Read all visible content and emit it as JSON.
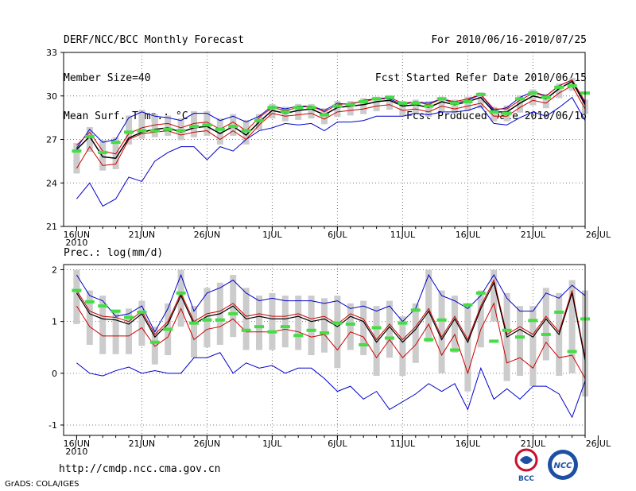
{
  "header": {
    "left": [
      "DERF/NCC/BCC Monthly Forecast",
      "Member Size=40",
      "Mean Surf. Temp.: °C"
    ],
    "right": [
      "For 2010/06/16-2010/07/25",
      "Fcst Started Refer Date 2010/06/15",
      "Fcst Produced Date 2010/06/16"
    ]
  },
  "footer": {
    "url": "http://cmdp.ncc.cma.gov.cn",
    "credit": "GrADS: COLA/IGES",
    "logo_bcc": "BCC",
    "logo_ncc": "NCC"
  },
  "colors": {
    "mean": "#000000",
    "spread": "#cc0000",
    "ens": "#0000cc",
    "box": "#cccccc",
    "marker": "#44dd44"
  },
  "chart_data": [
    {
      "type": "line",
      "title": "Mean Surf. Temp.: °C",
      "ylim": [
        21,
        33
      ],
      "yticks": [
        21,
        24,
        27,
        30,
        33
      ],
      "xticks": [
        "16JUN\n2010",
        "21JUN",
        "26JUN",
        "1JUL",
        "6JUL",
        "11JUL",
        "16JUL",
        "21JUL",
        "26JUL"
      ],
      "days": 40,
      "series": [
        {
          "name": "mean",
          "values": [
            26.3,
            27.2,
            25.8,
            25.7,
            27.1,
            27.5,
            27.7,
            27.8,
            27.5,
            27.8,
            27.9,
            27.4,
            27.9,
            27.3,
            28.2,
            29.0,
            28.8,
            29.0,
            29.1,
            28.7,
            29.2,
            29.3,
            29.4,
            29.6,
            29.7,
            29.3,
            29.4,
            29.2,
            29.6,
            29.4,
            29.6,
            29.9,
            28.9,
            28.9,
            29.5,
            30.0,
            29.8,
            30.5,
            31.0,
            29.4
          ]
        },
        {
          "name": "upper",
          "values": [
            26.6,
            27.5,
            26.2,
            26.0,
            27.4,
            27.8,
            28.0,
            28.1,
            27.8,
            28.1,
            28.2,
            27.7,
            28.2,
            27.6,
            28.5,
            29.2,
            29.0,
            29.2,
            29.3,
            28.9,
            29.4,
            29.5,
            29.6,
            29.8,
            29.9,
            29.5,
            29.6,
            29.4,
            29.8,
            29.6,
            29.8,
            30.1,
            29.1,
            29.1,
            29.7,
            30.2,
            30.0,
            30.7,
            31.1,
            29.6
          ]
        },
        {
          "name": "lower",
          "values": [
            25.0,
            26.5,
            25.2,
            25.3,
            27.0,
            27.4,
            27.5,
            27.6,
            27.3,
            27.5,
            27.6,
            27.0,
            27.6,
            27.0,
            28.0,
            28.8,
            28.6,
            28.7,
            28.8,
            28.4,
            28.9,
            29.0,
            29.1,
            29.3,
            29.4,
            29.0,
            29.1,
            28.9,
            29.3,
            29.1,
            29.3,
            29.5,
            28.6,
            28.6,
            29.2,
            29.7,
            29.5,
            30.2,
            30.7,
            29.1
          ]
        },
        {
          "name": "ens-max",
          "values": [
            26.4,
            27.7,
            26.8,
            27.0,
            28.5,
            28.9,
            28.6,
            28.5,
            28.3,
            28.8,
            28.8,
            28.3,
            28.6,
            28.2,
            28.6,
            29.3,
            29.1,
            29.3,
            29.3,
            29.0,
            29.5,
            29.4,
            29.7,
            29.8,
            29.8,
            29.4,
            29.6,
            29.5,
            29.8,
            29.5,
            29.7,
            30.1,
            29.0,
            29.2,
            29.9,
            30.3,
            30.0,
            30.7,
            31.1,
            29.5
          ]
        },
        {
          "name": "ens-min",
          "values": [
            22.9,
            24.0,
            22.4,
            22.9,
            24.4,
            24.1,
            25.5,
            26.1,
            26.5,
            26.5,
            25.6,
            26.5,
            26.2,
            27.0,
            27.6,
            27.8,
            28.1,
            28.0,
            28.1,
            27.6,
            28.2,
            28.2,
            28.3,
            28.6,
            28.6,
            28.6,
            28.8,
            28.7,
            28.9,
            28.9,
            29.0,
            29.3,
            28.1,
            28.0,
            28.5,
            28.9,
            28.6,
            29.2,
            29.9,
            28.3
          ]
        },
        {
          "name": "green",
          "values": [
            26.2,
            27.2,
            26.1,
            26.8,
            27.5,
            27.6,
            27.6,
            27.7,
            27.6,
            27.9,
            28.0,
            27.7,
            27.9,
            27.6,
            28.3,
            29.2,
            28.9,
            29.2,
            29.2,
            28.7,
            29.3,
            29.4,
            29.6,
            29.8,
            29.9,
            29.5,
            29.5,
            29.3,
            29.8,
            29.5,
            29.6,
            30.1,
            28.9,
            28.8,
            29.8,
            30.2,
            29.9,
            30.6,
            30.7,
            30.2
          ]
        }
      ]
    },
    {
      "type": "line",
      "title": "Prec.: log(mm/d)",
      "ylim": [
        -1.2,
        2.1
      ],
      "yticks": [
        -1,
        0,
        1,
        2
      ],
      "xticks": [
        "16JUN\n2010",
        "21JUN",
        "26JUN",
        "1JUL",
        "6JUL",
        "11JUL",
        "16JUL",
        "21JUL",
        "26JUL"
      ],
      "days": 40,
      "series": [
        {
          "name": "mean",
          "values": [
            1.55,
            1.15,
            1.05,
            1.03,
            0.95,
            1.15,
            0.7,
            0.95,
            1.5,
            0.95,
            1.1,
            1.15,
            1.3,
            1.05,
            1.1,
            1.05,
            1.05,
            1.1,
            1.0,
            1.05,
            0.9,
            1.1,
            1.0,
            0.6,
            0.9,
            0.6,
            0.85,
            1.2,
            0.65,
            1.05,
            0.6,
            1.25,
            1.75,
            0.7,
            0.85,
            0.7,
            1.05,
            0.75,
            1.55,
            0.25
          ]
        },
        {
          "name": "upper",
          "values": [
            1.6,
            1.2,
            1.1,
            1.08,
            1.0,
            1.2,
            0.75,
            1.0,
            1.55,
            1.0,
            1.15,
            1.2,
            1.35,
            1.1,
            1.15,
            1.1,
            1.1,
            1.15,
            1.05,
            1.1,
            0.95,
            1.15,
            1.05,
            0.65,
            0.95,
            0.65,
            0.9,
            1.25,
            0.7,
            1.1,
            0.65,
            1.3,
            1.8,
            0.75,
            0.9,
            0.75,
            1.1,
            0.8,
            1.6,
            0.3
          ]
        },
        {
          "name": "red",
          "values": [
            1.3,
            0.9,
            0.72,
            0.72,
            0.72,
            0.88,
            0.52,
            0.7,
            1.25,
            0.65,
            0.85,
            0.9,
            1.05,
            0.8,
            0.8,
            0.8,
            0.85,
            0.8,
            0.7,
            0.75,
            0.45,
            0.8,
            0.7,
            0.3,
            0.65,
            0.3,
            0.55,
            0.95,
            0.35,
            0.75,
            0.0,
            0.85,
            1.35,
            0.2,
            0.3,
            0.1,
            0.6,
            0.3,
            0.35,
            -0.1
          ]
        },
        {
          "name": "ens-max",
          "values": [
            1.9,
            1.5,
            1.4,
            1.1,
            1.15,
            1.3,
            0.8,
            1.25,
            1.9,
            1.2,
            1.55,
            1.65,
            1.8,
            1.55,
            1.4,
            1.45,
            1.4,
            1.4,
            1.4,
            1.35,
            1.4,
            1.25,
            1.3,
            1.2,
            1.3,
            1.0,
            1.25,
            1.9,
            1.5,
            1.4,
            1.25,
            1.5,
            1.9,
            1.45,
            1.2,
            1.2,
            1.55,
            1.45,
            1.7,
            1.5
          ]
        },
        {
          "name": "ens-min",
          "values": [
            0.2,
            0.0,
            -0.05,
            0.05,
            0.12,
            0.0,
            0.05,
            0.0,
            0.0,
            0.3,
            0.3,
            0.4,
            0.0,
            0.2,
            0.1,
            0.15,
            0.0,
            0.1,
            0.1,
            -0.1,
            -0.35,
            -0.25,
            -0.5,
            -0.35,
            -0.7,
            -0.55,
            -0.4,
            -0.2,
            -0.35,
            -0.2,
            -0.7,
            0.1,
            -0.5,
            -0.3,
            -0.5,
            -0.25,
            -0.25,
            -0.4,
            -0.85,
            -0.15
          ]
        },
        {
          "name": "green",
          "values": [
            1.6,
            1.38,
            1.3,
            1.2,
            1.08,
            1.18,
            0.6,
            0.85,
            1.55,
            0.97,
            1.03,
            1.03,
            1.15,
            0.83,
            0.9,
            0.8,
            0.9,
            0.73,
            0.83,
            0.78,
            0.97,
            0.95,
            0.55,
            0.88,
            0.68,
            0.97,
            1.22,
            0.65,
            1.03,
            0.45,
            1.32,
            1.55,
            0.62,
            0.83,
            0.7,
            1.02,
            0.75,
            1.18,
            0.42,
            1.05
          ]
        }
      ]
    }
  ]
}
